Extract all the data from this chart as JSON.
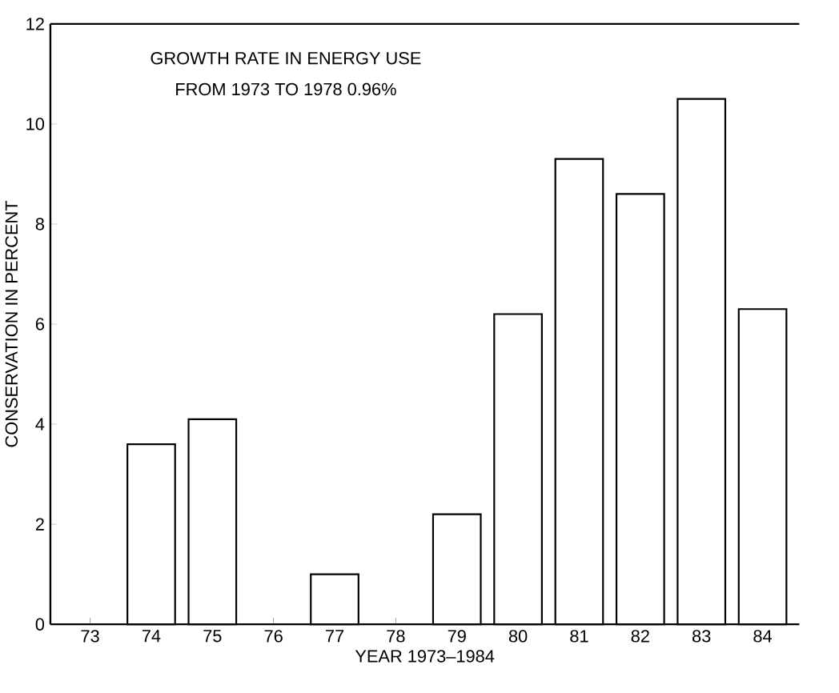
{
  "chart_data": {
    "type": "bar",
    "xlabel": "YEAR 1973–1984",
    "ylabel": "CONSERVATION IN PERCENT",
    "annotations": [
      "GROWTH RATE IN ENERGY USE",
      "FROM 1973 TO 1978  0.96%"
    ],
    "categories": [
      "73",
      "74",
      "75",
      "76",
      "77",
      "78",
      "79",
      "80",
      "81",
      "82",
      "83",
      "84"
    ],
    "values": [
      null,
      3.6,
      4.1,
      null,
      1.0,
      null,
      2.2,
      6.2,
      9.3,
      8.6,
      10.5,
      6.3
    ],
    "color": "#ffffff",
    "ylim": [
      0,
      12
    ],
    "yticks": [
      0,
      2,
      4,
      6,
      8,
      10,
      12
    ],
    "grid": false
  }
}
